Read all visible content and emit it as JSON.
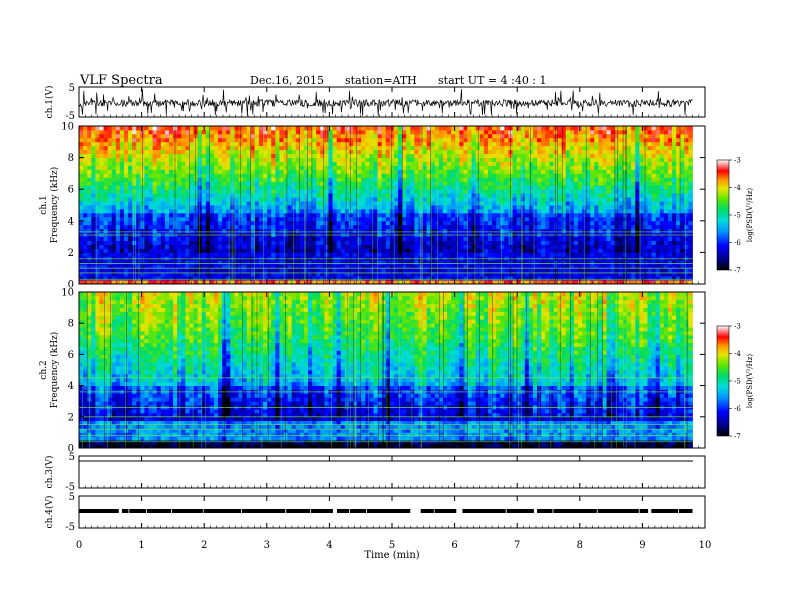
{
  "header": {
    "title": "VLF  Spectra",
    "date": "Dec.16, 2015",
    "station": "station=ATH",
    "start": "start  UT  =   4  :40 : 1"
  },
  "chart_data": [
    {
      "type": "line",
      "name": "ch1-waveform",
      "ylabel": "ch.1(V)",
      "ylim": [
        -5,
        5
      ],
      "yticks": [
        "5",
        "-5"
      ],
      "x_range_min": [
        0,
        9.8
      ],
      "description_level": "noisy broadband signal centered near 0 V with frequent negative spikes"
    },
    {
      "type": "heatmap",
      "name": "ch1-spectrogram",
      "ylabel": "Frequency  (kHz)",
      "channel_label": "ch.1",
      "ylim_khz": [
        0,
        10
      ],
      "yticks": [
        "0",
        "2",
        "4",
        "6",
        "8",
        "10"
      ],
      "colorbar": {
        "label": "log(PSD(V²/Hz)",
        "ticks": [
          "-3",
          "-4",
          "-5",
          "-6",
          "-7"
        ],
        "range": [
          -7,
          -3
        ]
      }
    },
    {
      "type": "heatmap",
      "name": "ch2-spectrogram",
      "ylabel": "Frequency  (kHz)",
      "channel_label": "ch.2",
      "ylim_khz": [
        0,
        10
      ],
      "yticks": [
        "0",
        "2",
        "4",
        "6",
        "8",
        "10"
      ],
      "colorbar": {
        "label": "log(PSD(V²/Hz)",
        "ticks": [
          "-3",
          "-4",
          "-5",
          "-6",
          "-7"
        ],
        "range": [
          -7,
          -3
        ]
      }
    },
    {
      "type": "line",
      "name": "ch3-waveform",
      "ylabel": "ch.3(V)",
      "ylim": [
        -5,
        5
      ],
      "yticks": [
        "5",
        "-5"
      ]
    },
    {
      "type": "line",
      "name": "ch4-waveform",
      "ylabel": "ch.4(V)",
      "ylim": [
        -5,
        5
      ],
      "yticks": [
        "5",
        "-5"
      ]
    }
  ],
  "xaxis": {
    "label": "Time  (min)",
    "range": [
      0,
      10
    ],
    "ticks": [
      "0",
      "1",
      "2",
      "3",
      "4",
      "5",
      "6",
      "7",
      "8",
      "9",
      "10"
    ]
  },
  "colors": {
    "scale": [
      "#00008b",
      "#0000ff",
      "#0096ff",
      "#00dcdc",
      "#00dc64",
      "#64e600",
      "#e6e600",
      "#ff9600",
      "#ff0000"
    ]
  }
}
